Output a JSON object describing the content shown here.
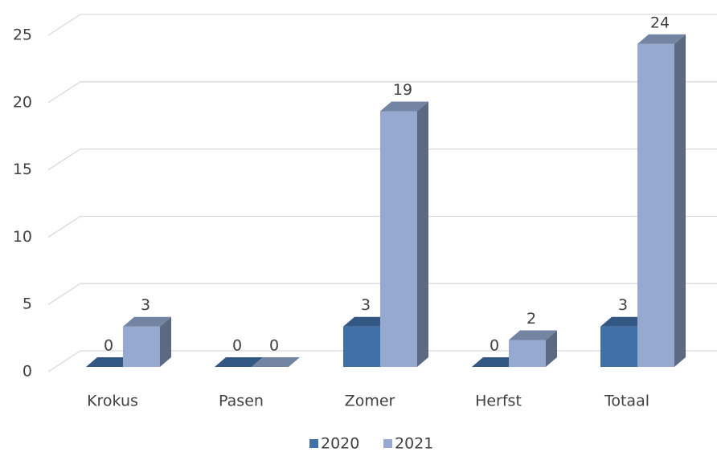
{
  "chart_data": {
    "type": "bar3d",
    "categories": [
      "Krokus",
      "Pasen",
      "Zomer",
      "Herfst",
      "Totaal"
    ],
    "series": [
      {
        "name": "2020",
        "color": "#4070a8",
        "values": [
          0,
          0,
          3,
          0,
          3
        ]
      },
      {
        "name": "2021",
        "color": "#95a9d1",
        "values": [
          3,
          0,
          19,
          2,
          24
        ]
      }
    ],
    "ylim": [
      0,
      25
    ],
    "yticks": [
      0,
      5,
      10,
      15,
      20,
      25
    ],
    "grid": true,
    "legend": "bottom"
  }
}
